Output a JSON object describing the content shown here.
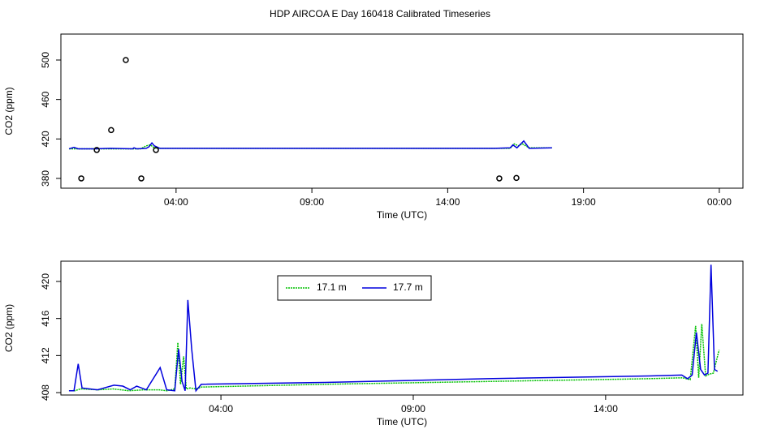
{
  "title": "HDP AIRCOA E  Day 160418  Calibrated Timeseries",
  "chart_data": [
    {
      "type": "line",
      "xlabel": "Time (UTC)",
      "ylabel": "CO2 (ppm)",
      "xlim": [
        -0.24,
        24.87
      ],
      "xticks": [
        {
          "value": 4,
          "label": "04:00"
        },
        {
          "value": 9,
          "label": "09:00"
        },
        {
          "value": 14,
          "label": "14:00"
        },
        {
          "value": 19,
          "label": "19:00"
        },
        {
          "value": 24,
          "label": "00:00"
        }
      ],
      "ylim": [
        370.1,
        526.3
      ],
      "yticks": [
        380,
        420,
        460,
        500
      ],
      "series": [
        {
          "color": "#00c000",
          "mode": "line",
          "dash": true,
          "x": [
            0.06,
            0.5,
            1.2,
            2.0,
            2.7,
            2.9,
            3.05,
            3.2,
            3.35,
            7,
            12,
            15.72,
            16.3,
            16.45,
            16.6,
            16.75,
            17.0,
            17.84
          ],
          "values": [
            410,
            410,
            410,
            410,
            410,
            413,
            414,
            411,
            410.5,
            410.5,
            410.5,
            410.5,
            410.5,
            415,
            413,
            415,
            411,
            411
          ]
        },
        {
          "color": "#0000dd",
          "mode": "line",
          "dash": false,
          "x": [
            0.06,
            0.24,
            0.4,
            1.0,
            1.6,
            2.4,
            2.45,
            2.55,
            2.9,
            3.0,
            3.11,
            3.2,
            3.4,
            7,
            12,
            15.72,
            16.3,
            16.4,
            16.55,
            16.8,
            17.0,
            17.84
          ],
          "values": [
            410,
            411.5,
            410,
            410,
            410.5,
            410,
            411,
            410,
            410.5,
            412,
            416,
            413,
            410.5,
            410.5,
            410.5,
            410.5,
            411,
            414,
            411,
            418,
            410.5,
            411
          ]
        },
        {
          "color": "#000000",
          "mode": "points",
          "x": [
            0.51,
            1.08,
            1.61,
            2.15,
            2.72,
            3.26,
            15.9,
            16.53
          ],
          "values": [
            380,
            408.8,
            429,
            500,
            380,
            408.8,
            380,
            380.5
          ]
        }
      ]
    },
    {
      "type": "line",
      "xlabel": "Time (UTC)",
      "ylabel": "CO2 (ppm)",
      "legend": "top",
      "xlim": [
        -0.16,
        17.57
      ],
      "xticks": [
        {
          "value": 4,
          "label": "04:00"
        },
        {
          "value": 9,
          "label": "09:00"
        },
        {
          "value": 14,
          "label": "14:00"
        }
      ],
      "ylim": [
        407.74,
        422.19
      ],
      "yticks": [
        408,
        412,
        416,
        420
      ],
      "series": [
        {
          "name": "17.1 m",
          "color": "#00c000",
          "mode": "line",
          "dash": true,
          "x": [
            0.05,
            0.2,
            0.35,
            0.8,
            1.2,
            1.6,
            2.0,
            2.4,
            2.6,
            2.8,
            2.88,
            2.95,
            3.03,
            3.1,
            3.2,
            3.35,
            3.5,
            6.7,
            10.9,
            15.1,
            16.0,
            16.2,
            16.34,
            16.42,
            16.5,
            16.6,
            16.7,
            16.8,
            16.95
          ],
          "values": [
            408.2,
            408.2,
            408.4,
            408.3,
            408.4,
            408.2,
            408.3,
            408.3,
            408.2,
            408.4,
            413.4,
            408.9,
            411.9,
            408.4,
            408.5,
            408.4,
            408.6,
            408.9,
            409.2,
            409.5,
            409.6,
            409.4,
            415.2,
            409.6,
            415.4,
            409.8,
            410,
            410.1,
            412.6
          ]
        },
        {
          "name": "17.7 m",
          "color": "#0000dd",
          "mode": "line",
          "dash": false,
          "x": [
            0.05,
            0.18,
            0.29,
            0.39,
            0.79,
            1.22,
            1.45,
            1.64,
            1.81,
            2.06,
            2.42,
            2.59,
            2.8,
            2.9,
            2.99,
            3.07,
            3.14,
            3.24,
            3.35,
            3.49,
            6.7,
            10.92,
            15.14,
            15.98,
            16.13,
            16.25,
            16.36,
            16.47,
            16.57,
            16.66,
            16.74,
            16.83,
            16.91
          ],
          "values": [
            408.2,
            408.2,
            411.1,
            408.5,
            408.3,
            408.8,
            408.7,
            408.3,
            408.7,
            408.3,
            410.7,
            408.3,
            408.2,
            412.7,
            409.2,
            408.2,
            418.0,
            412.7,
            408.2,
            408.9,
            409.1,
            409.5,
            409.8,
            409.9,
            409.5,
            409.9,
            414.5,
            410.5,
            409.9,
            410.1,
            421.8,
            410.5,
            410.3
          ]
        }
      ]
    }
  ]
}
